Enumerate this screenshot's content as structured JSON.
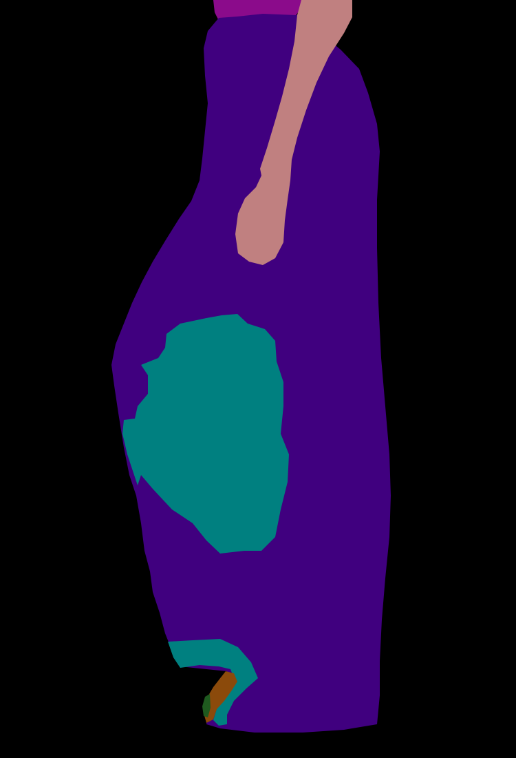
{
  "image": {
    "kind": "segmentation-mask",
    "background_color": "#000000"
  },
  "segments": [
    {
      "label": "",
      "color": "#8B0B8B"
    },
    {
      "label": "",
      "color": "#C08080"
    },
    {
      "label": "",
      "color": "#40007F"
    },
    {
      "label": "",
      "color": "#008080"
    },
    {
      "label": "",
      "color": "#8B4A0B"
    },
    {
      "label": "",
      "color": "#1F5A1F"
    }
  ]
}
